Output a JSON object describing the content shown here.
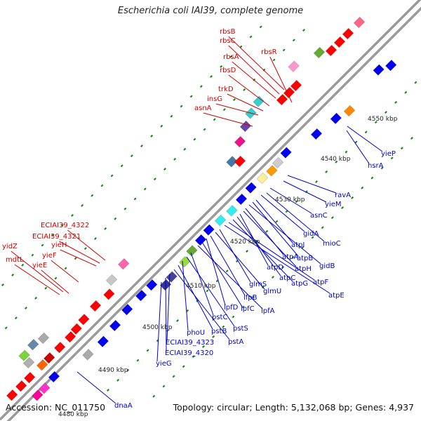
{
  "title": "Escherichia coli IAI39, complete genome",
  "footer": {
    "accession": "Accession: NC_011750",
    "summary": "Topology: circular; Length: 5,132,068 bp; Genes: 4,937"
  },
  "colors": {
    "forward_label": "#d40000",
    "reverse_label": "#0000cc",
    "backbone": "#9a9a9a",
    "tick_dot": "#1a8a1a"
  },
  "map": {
    "kbp_ticks": [
      "4480 kbp",
      "4490 kbp",
      "4500 kbp",
      "4510 kbp",
      "4520 kbp",
      "4530 kbp",
      "4540 kbp",
      "4550 kbp"
    ],
    "forward_genes": [
      "rbsB",
      "rbsC",
      "rbsA",
      "rbsR",
      "rbsD",
      "trkD",
      "insG",
      "asnA",
      "ECIAI39_4322",
      "ECIAI39_4321",
      "yieH",
      "yidZ",
      "yieF",
      "mdtL",
      "yieE"
    ],
    "reverse_genes": [
      "yieP",
      "hsrA",
      "ravA",
      "yieM",
      "asnC",
      "mioC",
      "gidA",
      "atpI",
      "atpB",
      "gidB",
      "atpA",
      "atpH",
      "atpD",
      "atpC",
      "atpG",
      "atpF",
      "atpE",
      "glmS",
      "glmU",
      "lfpB",
      "lpfD",
      "lpfC",
      "lpfA",
      "pstC",
      "pstS",
      "phoU",
      "pstB",
      "pstA",
      "ECIAI39_4323",
      "ECIAI39_4320",
      "yieG",
      "dnaA"
    ]
  }
}
